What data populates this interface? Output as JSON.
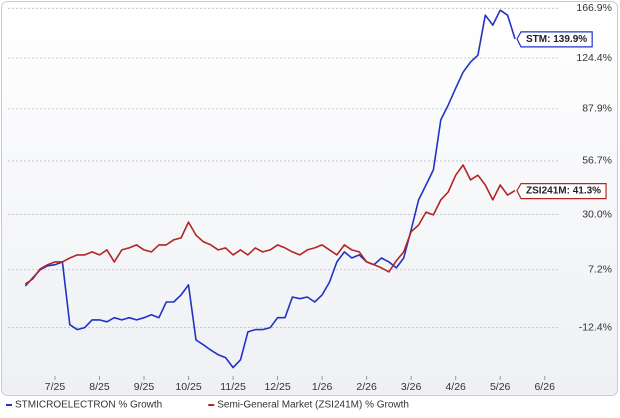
{
  "chart_data": {
    "type": "line",
    "log_scale": true,
    "grid": true,
    "categories": [
      null,
      null,
      null,
      null,
      "7/25",
      null,
      null,
      null,
      null,
      null,
      "8/25",
      null,
      null,
      null,
      null,
      null,
      "9/25",
      null,
      null,
      null,
      null,
      null,
      "10/25",
      null,
      null,
      null,
      null,
      null,
      "11/25",
      null,
      null,
      null,
      null,
      null,
      "12/25",
      null,
      null,
      null,
      null,
      null,
      "1/26",
      null,
      null,
      null,
      null,
      null,
      "2/26",
      null,
      null,
      null,
      null,
      null,
      "3/26",
      null,
      null,
      null,
      null,
      null,
      "4/26",
      null,
      null,
      null,
      null,
      null,
      "5/26",
      null,
      null,
      null,
      null,
      null,
      "6/26"
    ],
    "ylim": [
      -26,
      170
    ],
    "yticks": [
      {
        "value": -12.4,
        "label": "-12.4%"
      },
      {
        "value": 7.2,
        "label": "7.2%"
      },
      {
        "value": 30.0,
        "label": "30.0%"
      },
      {
        "value": 56.7,
        "label": "56.7%"
      },
      {
        "value": 87.9,
        "label": "87.9%"
      },
      {
        "value": 124.4,
        "label": "124.4%"
      },
      {
        "value": 166.9,
        "label": "166.9%"
      }
    ],
    "series": [
      {
        "name": "STMICROELECTRON % Growth",
        "color": "#2233c4",
        "end_label": "STM: 139.9%",
        "values": [
          1.3,
          4.2,
          7.2,
          8.7,
          9.1,
          10.2,
          -11.5,
          -13.0,
          -12.4,
          -10.0,
          -10.0,
          -10.6,
          -9.3,
          -10.0,
          -9.3,
          -10.0,
          -9.3,
          -8.4,
          -9.3,
          -4.2,
          -4.2,
          -1.8,
          1.7,
          -16.1,
          -17.5,
          -19.0,
          -20.3,
          -21.1,
          -23.8,
          -21.7,
          -13.7,
          -13.0,
          -13.0,
          -12.4,
          -9.3,
          -9.3,
          -2.5,
          -3.1,
          -2.5,
          -4.2,
          -1.8,
          2.7,
          10.2,
          14.1,
          11.7,
          12.9,
          10.2,
          9.1,
          11.7,
          10.2,
          7.9,
          11.7,
          23.2,
          36.8,
          44.1,
          51.9,
          80.8,
          90.4,
          102.0,
          113.6,
          121.2,
          126.6,
          160.6,
          151.7,
          165.1,
          160.6,
          139.9,
          null,
          null,
          null,
          null
        ]
      },
      {
        "name": "Semi-General Market (ZSI241M) % Growth",
        "color": "#b22626",
        "end_label": "ZSI241M: 41.3%",
        "values": [
          2.0,
          3.8,
          7.5,
          9.1,
          10.2,
          10.2,
          11.7,
          12.9,
          12.9,
          14.1,
          12.9,
          14.9,
          10.2,
          14.9,
          15.7,
          16.9,
          14.9,
          14.1,
          16.9,
          16.9,
          19.0,
          19.8,
          26.6,
          21.0,
          18.2,
          16.9,
          14.9,
          15.7,
          12.9,
          14.9,
          12.9,
          15.7,
          14.1,
          14.9,
          16.9,
          15.7,
          14.1,
          12.9,
          14.9,
          15.7,
          16.9,
          14.9,
          12.9,
          16.9,
          14.9,
          14.1,
          10.2,
          9.1,
          7.9,
          6.4,
          10.6,
          14.1,
          22.4,
          25.3,
          31.1,
          29.8,
          36.8,
          40.6,
          49.1,
          54.5,
          46.7,
          49.1,
          44.1,
          36.8,
          44.1,
          39.1,
          41.3,
          null,
          null,
          null,
          null
        ]
      }
    ]
  }
}
